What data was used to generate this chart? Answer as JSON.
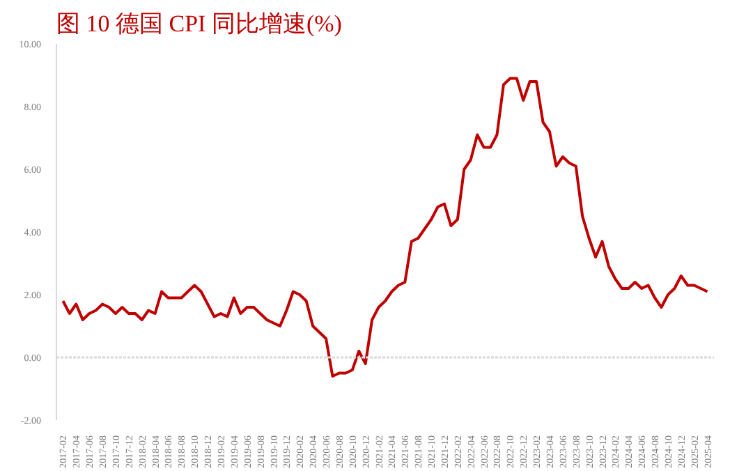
{
  "chart_data": {
    "type": "line",
    "title": "图 10 德国 CPI 同比增速(%)",
    "categories": [
      "2017-02",
      null,
      "2017-04",
      null,
      "2017-06",
      null,
      "2017-08",
      null,
      "2017-10",
      null,
      "2017-12",
      null,
      "2018-02",
      null,
      "2018-04",
      null,
      "2018-06",
      null,
      "2018-08",
      null,
      "2018-10",
      null,
      "2018-12",
      null,
      "2019-02",
      null,
      "2019-04",
      null,
      "2019-06",
      null,
      "2019-08",
      null,
      "2019-10",
      null,
      "2019-12",
      null,
      "2020-02",
      null,
      "2020-04",
      null,
      "2020-06",
      null,
      "2020-08",
      null,
      "2020-10",
      null,
      "2020-12",
      null,
      "2021-02",
      null,
      "2021-04",
      null,
      "2021-06",
      null,
      "2021-08",
      null,
      "2021-10",
      null,
      "2021-12",
      null,
      "2022-02",
      null,
      "2022-04",
      null,
      "2022-06",
      null,
      "2022-08",
      null,
      "2022-10",
      null,
      "2022-12",
      null,
      "2023-02",
      null,
      "2023-04",
      null,
      "2023-06",
      null,
      "2023-08",
      null,
      "2023-10",
      null,
      "2023-12",
      null,
      "2024-02",
      null,
      "2024-04",
      null,
      "2024-06",
      null,
      "2024-08",
      null,
      "2024-10",
      null,
      "2024-12",
      null,
      "2025-02",
      null,
      "2025-04"
    ],
    "series": [
      {
        "color": "#c00000",
        "values": [
          1.8,
          1.4,
          1.7,
          1.2,
          1.4,
          1.5,
          1.7,
          1.6,
          1.4,
          1.6,
          1.4,
          1.4,
          1.2,
          1.5,
          1.4,
          2.1,
          1.9,
          1.9,
          1.9,
          2.1,
          2.3,
          2.1,
          1.7,
          1.3,
          1.4,
          1.3,
          1.9,
          1.4,
          1.6,
          1.6,
          1.4,
          1.2,
          1.1,
          1.0,
          1.5,
          2.1,
          2.0,
          1.8,
          1.0,
          0.8,
          0.6,
          -0.6,
          -0.5,
          -0.5,
          -0.4,
          0.2,
          -0.2,
          1.2,
          1.6,
          1.8,
          2.1,
          2.3,
          2.4,
          3.7,
          3.8,
          4.1,
          4.4,
          4.8,
          4.9,
          4.2,
          4.4,
          6.0,
          6.3,
          7.1,
          6.7,
          6.7,
          7.1,
          8.7,
          8.9,
          8.9,
          8.2,
          8.8,
          8.8,
          7.5,
          7.2,
          6.1,
          6.4,
          6.2,
          6.1,
          4.5,
          3.8,
          3.2,
          3.7,
          2.9,
          2.5,
          2.2,
          2.2,
          2.4,
          2.2,
          2.3,
          1.9,
          1.6,
          2.0,
          2.2,
          2.6,
          2.3,
          2.3,
          2.2,
          2.1
        ]
      }
    ],
    "ylim": [
      -2,
      10
    ],
    "yticks": [
      {
        "value": -2,
        "label": "-2.00"
      },
      {
        "value": 0,
        "label": "0.00"
      },
      {
        "value": 2,
        "label": "2.00"
      },
      {
        "value": 4,
        "label": "4.00"
      },
      {
        "value": 6,
        "label": "6.00"
      },
      {
        "value": 8,
        "label": "8.00"
      },
      {
        "value": 10,
        "label": "10.00"
      }
    ],
    "ref_lines": [
      {
        "axis": "y",
        "value": 0,
        "color": "#d9d9d9"
      }
    ],
    "grid": false,
    "marker": "none",
    "line_style": "solid"
  }
}
